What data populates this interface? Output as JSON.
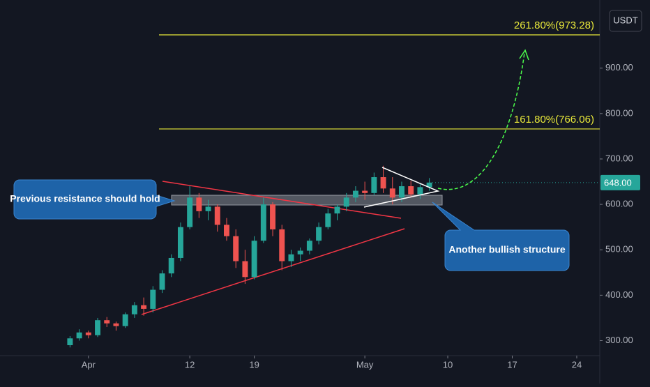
{
  "chart_data": {
    "type": "candlestick",
    "unit": "USDT",
    "x": [
      -2,
      -1,
      0,
      1,
      2,
      3,
      4,
      5,
      6,
      7,
      8,
      9,
      10,
      11,
      12,
      13,
      14,
      15,
      16,
      17,
      18,
      19,
      20,
      21,
      22,
      23,
      24,
      25,
      26,
      27,
      28,
      29,
      30,
      31,
      32,
      33,
      34,
      35,
      36,
      37
    ],
    "open": [
      290,
      305,
      318,
      312,
      345,
      338,
      332,
      358,
      378,
      370,
      412,
      448,
      482,
      550,
      615,
      585,
      595,
      555,
      530,
      475,
      440,
      520,
      600,
      545,
      475,
      490,
      498,
      520,
      550,
      580,
      595,
      615,
      630,
      625,
      660,
      635,
      615,
      640,
      622,
      638
    ],
    "high": [
      310,
      325,
      322,
      350,
      352,
      342,
      362,
      385,
      395,
      420,
      455,
      490,
      560,
      640,
      625,
      610,
      600,
      570,
      545,
      500,
      530,
      615,
      605,
      555,
      500,
      505,
      525,
      560,
      590,
      600,
      625,
      640,
      650,
      670,
      685,
      660,
      650,
      652,
      645,
      658
    ],
    "low": [
      285,
      300,
      305,
      308,
      330,
      322,
      328,
      350,
      355,
      362,
      405,
      440,
      475,
      545,
      570,
      565,
      540,
      520,
      460,
      425,
      435,
      515,
      530,
      455,
      462,
      475,
      490,
      512,
      545,
      565,
      585,
      605,
      610,
      620,
      625,
      600,
      605,
      615,
      612,
      630
    ],
    "close": [
      305,
      318,
      312,
      345,
      338,
      332,
      358,
      378,
      370,
      412,
      448,
      482,
      550,
      615,
      585,
      595,
      555,
      530,
      475,
      440,
      520,
      600,
      545,
      475,
      490,
      498,
      520,
      550,
      580,
      595,
      615,
      630,
      625,
      660,
      635,
      615,
      640,
      622,
      638,
      648
    ],
    "up_color": "#26a69a",
    "down_color": "#ef5350",
    "xlim": [
      -9.6,
      55.5
    ],
    "ylim": [
      267,
      1050
    ],
    "xticks": [
      {
        "value": 0,
        "label": "Apr"
      },
      {
        "value": 11,
        "label": "12"
      },
      {
        "value": 18,
        "label": "19"
      },
      {
        "value": 30,
        "label": "May"
      },
      {
        "value": 39,
        "label": "10"
      },
      {
        "value": 46,
        "label": "17"
      },
      {
        "value": 53,
        "label": "24"
      }
    ],
    "yticks": [
      {
        "value": 300,
        "label": "300.00"
      },
      {
        "value": 400,
        "label": "400.00"
      },
      {
        "value": 500,
        "label": "500.00"
      },
      {
        "value": 600,
        "label": "600.00"
      },
      {
        "value": 700,
        "label": "700.00"
      },
      {
        "value": 800,
        "label": "800.00"
      },
      {
        "value": 900,
        "label": "900.00"
      }
    ],
    "last_price": {
      "value": 648,
      "label": "648.00"
    },
    "fib_levels": [
      {
        "value": 973.28,
        "label": "261.80%(973.28)"
      },
      {
        "value": 766.06,
        "label": "161.80%(766.06)"
      }
    ],
    "fib_color": "#e8e83a",
    "annotations": [
      "Previous resistance should hold",
      "Another bullish structure"
    ]
  }
}
